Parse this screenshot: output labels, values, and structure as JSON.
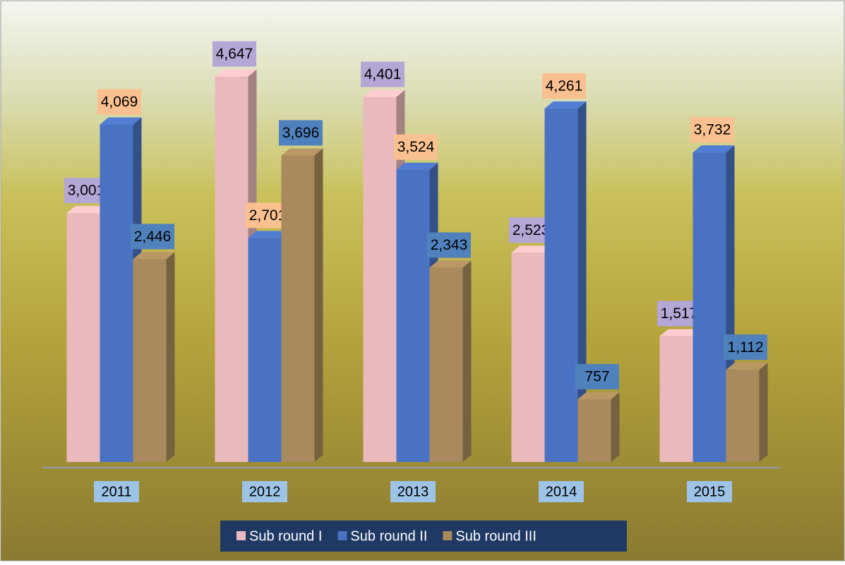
{
  "chart_data": {
    "type": "bar3d",
    "categories": [
      "2011",
      "2012",
      "2013",
      "2014",
      "2015"
    ],
    "series": [
      {
        "name": "Sub round I",
        "color": "#e9b9bd",
        "label_color": "#b4a7d6",
        "values": [
          3001,
          4647,
          4401,
          2523,
          1517
        ],
        "value_labels": [
          "3,001",
          "4,647",
          "4,401",
          "2,523",
          "1,517"
        ]
      },
      {
        "name": "Sub round II",
        "color": "#4a72c2",
        "label_color": "#fac090",
        "values": [
          4069,
          2701,
          3524,
          4261,
          3732
        ],
        "value_labels": [
          "4,069",
          "2,701",
          "3,524",
          "4,261",
          "3,732"
        ]
      },
      {
        "name": "Sub round III",
        "color": "#a88a5c",
        "label_color": "#4f81bd",
        "values": [
          2446,
          3696,
          2343,
          757,
          1112
        ],
        "value_labels": [
          "2,446",
          "3,696",
          "2,343",
          "757",
          "1,112"
        ]
      }
    ],
    "ylim": [
      0,
      5000
    ]
  }
}
